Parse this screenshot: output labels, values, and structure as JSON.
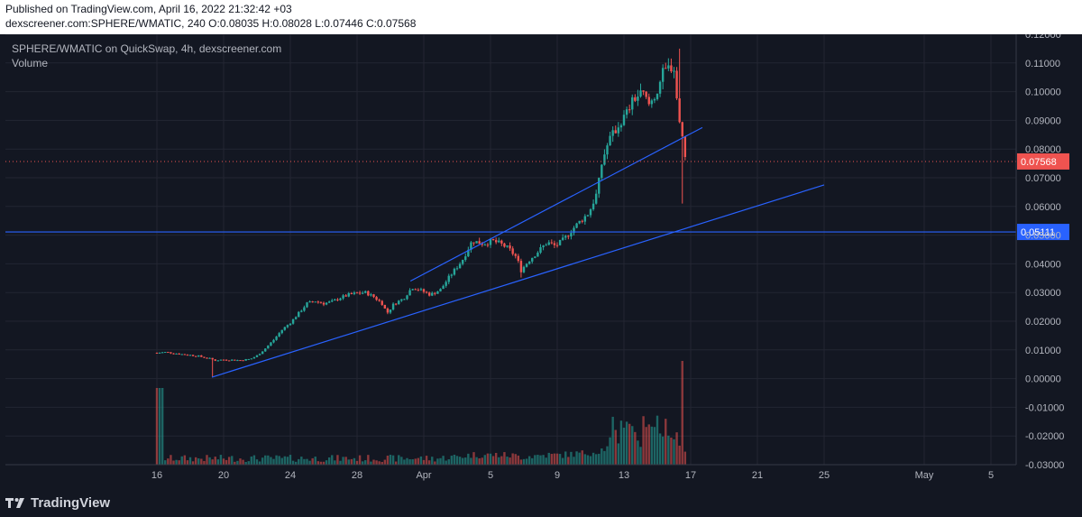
{
  "header": {
    "published": "Published on TradingView.com, April 16, 2022 21:32:42 +03",
    "symbol_line": "dexscreener.com:SPHERE/WMATIC, 240 O:0.08035 H:0.08028 L:0.07446 C:0.07568"
  },
  "legend": {
    "title": "SPHERE/WMATIC on QuickSwap, 4h, dexscreener.com",
    "volume": "Volume"
  },
  "brand": "TradingView",
  "colors": {
    "background": "#131722",
    "grid": "#232632",
    "up": "#26a69a",
    "down": "#ef5350",
    "trendline": "#2962ff",
    "axis_text": "#b2b5be"
  },
  "chart_data": {
    "type": "candlestick",
    "ylim": [
      -0.03,
      0.12
    ],
    "y_ticks": [
      "0.12000",
      "0.11000",
      "0.10000",
      "0.09000",
      "0.08000",
      "0.07000",
      "0.06000",
      "0.05000",
      "0.04000",
      "0.03000",
      "0.02000",
      "0.01000",
      "0.00000",
      "-0.01000",
      "-0.02000",
      "-0.03000"
    ],
    "x_ticks": [
      {
        "label": "16",
        "day": 16
      },
      {
        "label": "20",
        "day": 20
      },
      {
        "label": "24",
        "day": 24
      },
      {
        "label": "28",
        "day": 28
      },
      {
        "label": "Apr",
        "day": 32
      },
      {
        "label": "5",
        "day": 36
      },
      {
        "label": "9",
        "day": 40
      },
      {
        "label": "13",
        "day": 44
      },
      {
        "label": "17",
        "day": 48
      },
      {
        "label": "21",
        "day": 52
      },
      {
        "label": "25",
        "day": 56
      },
      {
        "label": "May",
        "day": 62
      },
      {
        "label": "5",
        "day": 66
      }
    ],
    "last_price": {
      "label": "0.07568",
      "value": 0.07568
    },
    "horizontal_line": {
      "label": "0.05111",
      "value": 0.05111
    },
    "trendlines": [
      {
        "from": {
          "day": 19.3,
          "value": 0.0005
        },
        "to": {
          "day": 56,
          "value": 0.0675
        }
      },
      {
        "from": {
          "day": 31.2,
          "value": 0.034
        },
        "to": {
          "day": 48.7,
          "value": 0.0875
        }
      }
    ],
    "close_path": [
      [
        16.0,
        0.009
      ],
      [
        16.5,
        0.0092
      ],
      [
        17.0,
        0.0089
      ],
      [
        17.5,
        0.0085
      ],
      [
        18.0,
        0.0082
      ],
      [
        18.5,
        0.0078
      ],
      [
        19.0,
        0.0072
      ],
      [
        19.5,
        0.0064
      ],
      [
        20.0,
        0.0066
      ],
      [
        21.0,
        0.0064
      ],
      [
        21.6,
        0.0068
      ],
      [
        22.0,
        0.008
      ],
      [
        22.5,
        0.0105
      ],
      [
        23.0,
        0.0135
      ],
      [
        23.5,
        0.017
      ],
      [
        24.0,
        0.0195
      ],
      [
        24.5,
        0.0228
      ],
      [
        25.0,
        0.0262
      ],
      [
        25.5,
        0.027
      ],
      [
        26.0,
        0.0262
      ],
      [
        26.5,
        0.0268
      ],
      [
        27.0,
        0.0282
      ],
      [
        27.5,
        0.0292
      ],
      [
        28.0,
        0.0298
      ],
      [
        28.5,
        0.03
      ],
      [
        29.0,
        0.0285
      ],
      [
        29.5,
        0.0262
      ],
      [
        29.8,
        0.0228
      ],
      [
        30.2,
        0.026
      ],
      [
        30.8,
        0.028
      ],
      [
        31.3,
        0.0318
      ],
      [
        31.8,
        0.0308
      ],
      [
        32.4,
        0.0292
      ],
      [
        33.0,
        0.031
      ],
      [
        33.6,
        0.036
      ],
      [
        34.3,
        0.0412
      ],
      [
        34.9,
        0.048
      ],
      [
        35.6,
        0.047
      ],
      [
        36.1,
        0.048
      ],
      [
        36.6,
        0.047
      ],
      [
        37.1,
        0.0452
      ],
      [
        37.6,
        0.042
      ],
      [
        37.8,
        0.0375
      ],
      [
        38.3,
        0.0412
      ],
      [
        38.8,
        0.044
      ],
      [
        39.4,
        0.0475
      ],
      [
        39.9,
        0.0462
      ],
      [
        40.4,
        0.0485
      ],
      [
        40.9,
        0.052
      ],
      [
        41.4,
        0.055
      ],
      [
        41.9,
        0.0578
      ],
      [
        42.4,
        0.065
      ],
      [
        42.7,
        0.076
      ],
      [
        43.1,
        0.083
      ],
      [
        43.6,
        0.0875
      ],
      [
        44.1,
        0.092
      ],
      [
        44.6,
        0.0975
      ],
      [
        45.1,
        0.0995
      ],
      [
        45.5,
        0.0955
      ],
      [
        45.9,
        0.099
      ],
      [
        46.3,
        0.106
      ],
      [
        46.8,
        0.109
      ],
      [
        47.0,
        0.108
      ],
      [
        47.3,
        0.09
      ],
      [
        47.5,
        0.083
      ],
      [
        47.7,
        0.0757
      ]
    ]
  }
}
